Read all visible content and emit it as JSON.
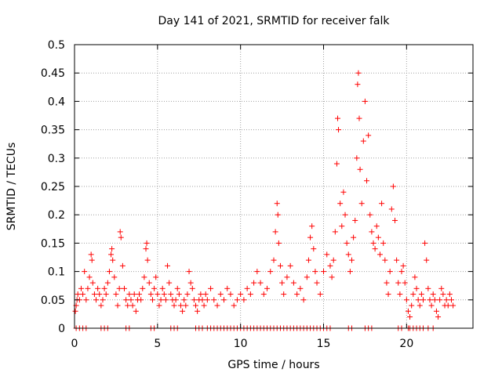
{
  "chart_data": {
    "type": "scatter",
    "title": "Day 141 of 2021, SRMTID for receiver falk",
    "xlabel": "GPS time / hours",
    "ylabel": "SRMTID / TECUs",
    "xlim": [
      0,
      24
    ],
    "ylim": [
      0,
      0.5
    ],
    "x_ticks": [
      0,
      5,
      10,
      15,
      20
    ],
    "x_tick_labels": [
      "0",
      "5",
      "10",
      "15",
      "20"
    ],
    "y_ticks": [
      0,
      0.05,
      0.1,
      0.15,
      0.2,
      0.25,
      0.3,
      0.35,
      0.4,
      0.45,
      0.5
    ],
    "y_tick_labels": [
      "0",
      "0.05",
      "0.1",
      "0.15",
      "0.2",
      "0.25",
      "0.3",
      "0.35",
      "0.4",
      "0.45",
      "0.5"
    ],
    "grid": true,
    "marker": "plus",
    "color": "#ff0000",
    "series": [
      {
        "name": "SRMTID",
        "points": [
          [
            0.05,
            0.03
          ],
          [
            0.1,
            0.04
          ],
          [
            0.15,
            0.05
          ],
          [
            0.2,
            0.06
          ],
          [
            0.3,
            0.05
          ],
          [
            0.4,
            0.07
          ],
          [
            0.5,
            0.06
          ],
          [
            0.6,
            0.1
          ],
          [
            0.7,
            0.05
          ],
          [
            0.8,
            0.07
          ],
          [
            0.9,
            0.09
          ],
          [
            1.0,
            0.13
          ],
          [
            1.05,
            0.12
          ],
          [
            1.1,
            0.08
          ],
          [
            1.2,
            0.06
          ],
          [
            1.3,
            0.05
          ],
          [
            1.4,
            0.07
          ],
          [
            1.5,
            0.06
          ],
          [
            1.6,
            0.04
          ],
          [
            1.7,
            0.05
          ],
          [
            1.8,
            0.07
          ],
          [
            1.9,
            0.06
          ],
          [
            2.0,
            0.08
          ],
          [
            2.1,
            0.1
          ],
          [
            2.2,
            0.13
          ],
          [
            2.25,
            0.14
          ],
          [
            2.3,
            0.12
          ],
          [
            2.4,
            0.09
          ],
          [
            2.5,
            0.06
          ],
          [
            2.6,
            0.04
          ],
          [
            2.7,
            0.07
          ],
          [
            2.75,
            0.17
          ],
          [
            2.8,
            0.16
          ],
          [
            2.9,
            0.11
          ],
          [
            3.0,
            0.07
          ],
          [
            3.1,
            0.05
          ],
          [
            3.2,
            0.04
          ],
          [
            3.3,
            0.06
          ],
          [
            3.4,
            0.05
          ],
          [
            3.5,
            0.04
          ],
          [
            3.6,
            0.06
          ],
          [
            3.7,
            0.03
          ],
          [
            3.8,
            0.05
          ],
          [
            3.9,
            0.06
          ],
          [
            4.0,
            0.05
          ],
          [
            4.1,
            0.07
          ],
          [
            4.2,
            0.09
          ],
          [
            4.3,
            0.14
          ],
          [
            4.35,
            0.15
          ],
          [
            4.4,
            0.12
          ],
          [
            4.5,
            0.08
          ],
          [
            4.6,
            0.06
          ],
          [
            4.7,
            0.05
          ],
          [
            4.8,
            0.07
          ],
          [
            4.9,
            0.09
          ],
          [
            5.0,
            0.06
          ],
          [
            5.1,
            0.04
          ],
          [
            5.2,
            0.05
          ],
          [
            5.3,
            0.07
          ],
          [
            5.4,
            0.06
          ],
          [
            5.5,
            0.05
          ],
          [
            5.6,
            0.11
          ],
          [
            5.7,
            0.08
          ],
          [
            5.8,
            0.06
          ],
          [
            5.9,
            0.05
          ],
          [
            6.0,
            0.04
          ],
          [
            6.1,
            0.05
          ],
          [
            6.2,
            0.07
          ],
          [
            6.3,
            0.06
          ],
          [
            6.4,
            0.04
          ],
          [
            6.5,
            0.03
          ],
          [
            6.6,
            0.05
          ],
          [
            6.7,
            0.04
          ],
          [
            6.8,
            0.06
          ],
          [
            6.9,
            0.1
          ],
          [
            7.0,
            0.08
          ],
          [
            7.1,
            0.07
          ],
          [
            7.2,
            0.05
          ],
          [
            7.3,
            0.04
          ],
          [
            7.4,
            0.03
          ],
          [
            7.5,
            0.05
          ],
          [
            7.6,
            0.06
          ],
          [
            7.7,
            0.05
          ],
          [
            7.8,
            0.04
          ],
          [
            7.9,
            0.06
          ],
          [
            8.0,
            0.05
          ],
          [
            8.2,
            0.07
          ],
          [
            8.4,
            0.05
          ],
          [
            8.6,
            0.04
          ],
          [
            8.8,
            0.06
          ],
          [
            9.0,
            0.05
          ],
          [
            9.2,
            0.07
          ],
          [
            9.4,
            0.06
          ],
          [
            9.6,
            0.04
          ],
          [
            9.8,
            0.05
          ],
          [
            10.0,
            0.06
          ],
          [
            10.2,
            0.05
          ],
          [
            10.4,
            0.07
          ],
          [
            10.6,
            0.06
          ],
          [
            10.8,
            0.08
          ],
          [
            11.0,
            0.1
          ],
          [
            11.2,
            0.08
          ],
          [
            11.4,
            0.06
          ],
          [
            11.6,
            0.07
          ],
          [
            11.8,
            0.1
          ],
          [
            12.0,
            0.12
          ],
          [
            12.1,
            0.17
          ],
          [
            12.2,
            0.22
          ],
          [
            12.25,
            0.2
          ],
          [
            12.3,
            0.15
          ],
          [
            12.4,
            0.11
          ],
          [
            12.5,
            0.08
          ],
          [
            12.6,
            0.06
          ],
          [
            12.8,
            0.09
          ],
          [
            13.0,
            0.11
          ],
          [
            13.2,
            0.08
          ],
          [
            13.4,
            0.06
          ],
          [
            13.6,
            0.07
          ],
          [
            13.8,
            0.05
          ],
          [
            14.0,
            0.09
          ],
          [
            14.1,
            0.12
          ],
          [
            14.2,
            0.16
          ],
          [
            14.3,
            0.18
          ],
          [
            14.4,
            0.14
          ],
          [
            14.5,
            0.1
          ],
          [
            14.6,
            0.08
          ],
          [
            14.8,
            0.06
          ],
          [
            15.0,
            0.1
          ],
          [
            15.2,
            0.13
          ],
          [
            15.4,
            0.11
          ],
          [
            15.5,
            0.09
          ],
          [
            15.6,
            0.12
          ],
          [
            15.7,
            0.17
          ],
          [
            15.8,
            0.29
          ],
          [
            15.85,
            0.37
          ],
          [
            15.9,
            0.35
          ],
          [
            16.0,
            0.22
          ],
          [
            16.1,
            0.18
          ],
          [
            16.2,
            0.24
          ],
          [
            16.3,
            0.2
          ],
          [
            16.4,
            0.15
          ],
          [
            16.5,
            0.13
          ],
          [
            16.6,
            0.1
          ],
          [
            16.7,
            0.12
          ],
          [
            16.8,
            0.16
          ],
          [
            16.9,
            0.19
          ],
          [
            17.0,
            0.3
          ],
          [
            17.05,
            0.43
          ],
          [
            17.1,
            0.45
          ],
          [
            17.15,
            0.37
          ],
          [
            17.2,
            0.28
          ],
          [
            17.3,
            0.22
          ],
          [
            17.4,
            0.33
          ],
          [
            17.5,
            0.4
          ],
          [
            17.6,
            0.26
          ],
          [
            17.7,
            0.34
          ],
          [
            17.8,
            0.2
          ],
          [
            17.9,
            0.17
          ],
          [
            18.0,
            0.15
          ],
          [
            18.1,
            0.14
          ],
          [
            18.2,
            0.18
          ],
          [
            18.3,
            0.16
          ],
          [
            18.4,
            0.13
          ],
          [
            18.5,
            0.22
          ],
          [
            18.6,
            0.15
          ],
          [
            18.7,
            0.12
          ],
          [
            18.8,
            0.08
          ],
          [
            18.9,
            0.06
          ],
          [
            19.0,
            0.1
          ],
          [
            19.1,
            0.21
          ],
          [
            19.2,
            0.25
          ],
          [
            19.3,
            0.19
          ],
          [
            19.4,
            0.12
          ],
          [
            19.5,
            0.08
          ],
          [
            19.6,
            0.06
          ],
          [
            19.7,
            0.1
          ],
          [
            19.8,
            0.11
          ],
          [
            19.9,
            0.08
          ],
          [
            20.0,
            0.05
          ],
          [
            20.1,
            0.03
          ],
          [
            20.2,
            0.02
          ],
          [
            20.3,
            0.04
          ],
          [
            20.4,
            0.06
          ],
          [
            20.5,
            0.09
          ],
          [
            20.6,
            0.07
          ],
          [
            20.7,
            0.05
          ],
          [
            20.8,
            0.04
          ],
          [
            20.9,
            0.06
          ],
          [
            21.0,
            0.05
          ],
          [
            21.1,
            0.15
          ],
          [
            21.2,
            0.12
          ],
          [
            21.3,
            0.07
          ],
          [
            21.4,
            0.05
          ],
          [
            21.5,
            0.04
          ],
          [
            21.6,
            0.06
          ],
          [
            21.7,
            0.05
          ],
          [
            21.8,
            0.03
          ],
          [
            21.9,
            0.02
          ],
          [
            22.0,
            0.05
          ],
          [
            22.1,
            0.07
          ],
          [
            22.2,
            0.06
          ],
          [
            22.3,
            0.04
          ],
          [
            22.4,
            0.05
          ],
          [
            22.5,
            0.04
          ],
          [
            22.6,
            0.06
          ],
          [
            22.7,
            0.05
          ],
          [
            22.8,
            0.04
          ]
        ],
        "zero_points": [
          0.1,
          0.3,
          0.5,
          0.7,
          1.6,
          1.8,
          2.0,
          3.1,
          3.3,
          4.6,
          4.8,
          5.8,
          6.0,
          6.2,
          7.3,
          7.5,
          7.7,
          8.0,
          8.2,
          8.4,
          8.6,
          8.8,
          9.0,
          9.2,
          9.4,
          9.6,
          9.8,
          10.0,
          10.2,
          10.4,
          10.6,
          10.8,
          11.0,
          11.2,
          11.4,
          11.6,
          11.8,
          12.0,
          12.2,
          12.4,
          12.6,
          12.8,
          13.0,
          13.2,
          13.4,
          13.6,
          13.8,
          14.0,
          14.2,
          14.4,
          14.6,
          14.8,
          15.0,
          15.2,
          15.4,
          16.5,
          16.7,
          17.5,
          17.7,
          17.9,
          19.5,
          19.7,
          20.1,
          20.2,
          20.4,
          20.6,
          20.8,
          21.0,
          21.3,
          21.6
        ]
      }
    ]
  }
}
